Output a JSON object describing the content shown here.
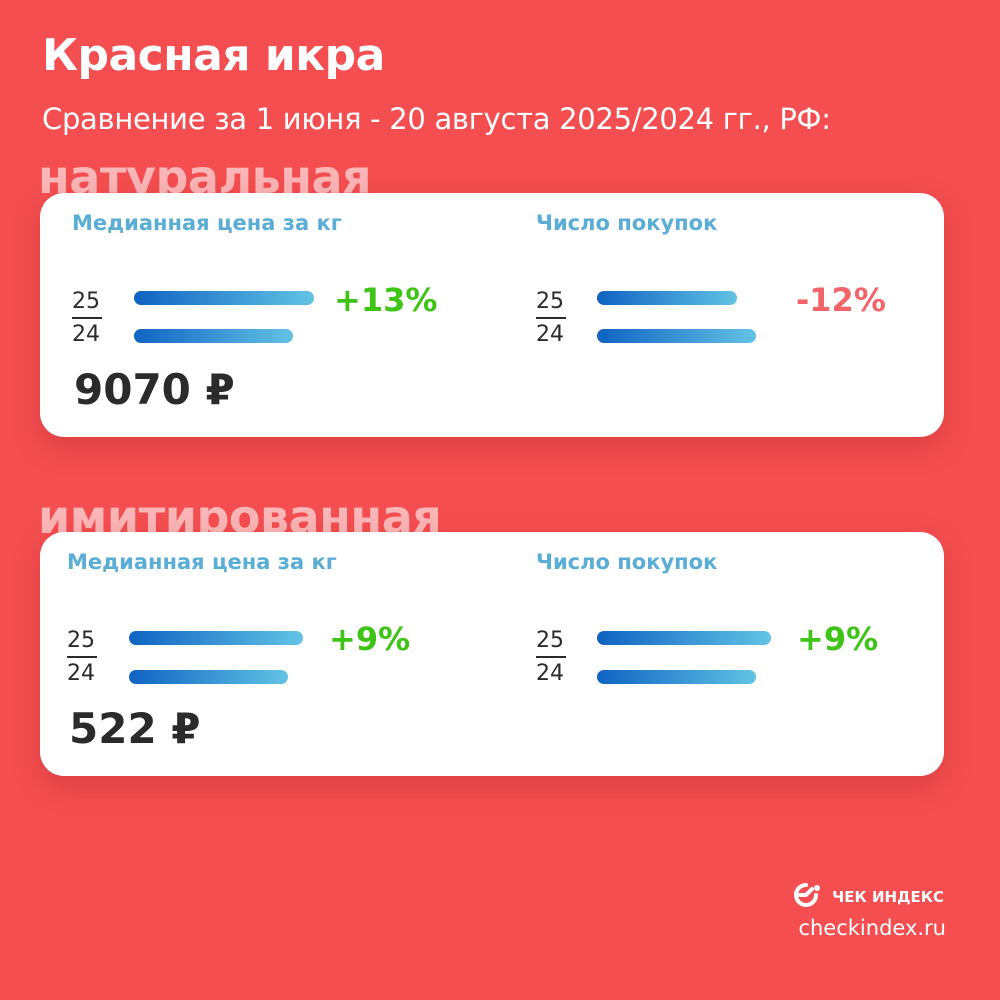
{
  "title": "Красная икра",
  "subtitle": "Сравнение за 1 июня - 20 августа 2025/2024 гг., РФ:",
  "colors": {
    "background": "#f44e50",
    "positive": "#3ec414",
    "negative": "#f26467",
    "metric_title": "#5aaed6",
    "bar_start": "#0f63c2",
    "bar_end": "#62c3e4"
  },
  "brand": {
    "name": "ЧЕК ИНДЕКС",
    "url": "checkindex.ru",
    "icon": "checkindex-logo-icon"
  },
  "chart_data": [
    {
      "type": "bar",
      "section": "натуральная",
      "metric": "Медианная цена за кг",
      "categories": [
        "25",
        "24"
      ],
      "values": [
        1.13,
        1.0
      ],
      "change_label": "+13%",
      "change_sign": "positive",
      "value_label": "9070 ₽"
    },
    {
      "type": "bar",
      "section": "натуральная",
      "metric": "Число покупок",
      "categories": [
        "25",
        "24"
      ],
      "values": [
        0.88,
        1.0
      ],
      "change_label": "-12%",
      "change_sign": "negative"
    },
    {
      "type": "bar",
      "section": "имитированная",
      "metric": "Медианная цена за кг",
      "categories": [
        "25",
        "24"
      ],
      "values": [
        1.09,
        1.0
      ],
      "change_label": "+9%",
      "change_sign": "positive",
      "value_label": "522 ₽"
    },
    {
      "type": "bar",
      "section": "имитированная",
      "metric": "Число покупок",
      "categories": [
        "25",
        "24"
      ],
      "values": [
        1.09,
        1.0
      ],
      "change_label": "+9%",
      "change_sign": "positive"
    }
  ]
}
